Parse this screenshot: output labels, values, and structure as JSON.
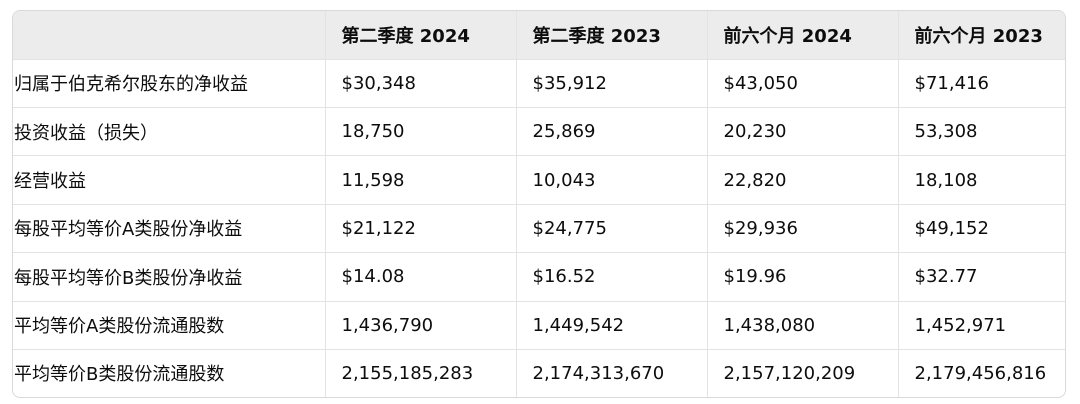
{
  "table": {
    "header": [
      "第二季度 2024",
      "第二季度 2023",
      "前六个月 2024",
      "前六个月 2023"
    ],
    "rows": [
      [
        "归属于伯克希尔股东的净收益",
        "$30,348",
        "$35,912",
        "$43,050",
        "$71,416"
      ],
      [
        "投资收益（损失）",
        "18,750",
        "25,869",
        "20,230",
        "53,308"
      ],
      [
        "经营收益",
        "11,598",
        "10,043",
        "22,820",
        "18,108"
      ],
      [
        "每股平均等价A类股份净收益",
        "$21,122",
        "$24,775",
        "$29,936",
        "$49,152"
      ],
      [
        "每股平均等价B类股份净收益",
        "$14.08",
        "$16.52",
        "$19.96",
        "$32.77"
      ],
      [
        "平均等价A类股份流通股数",
        "1,436,790",
        "1,449,542",
        "1,438,080",
        "1,452,971"
      ],
      [
        "平均等价B类股份流通股数",
        "2,155,185,283",
        "2,174,313,670",
        "2,157,120,209",
        "2,179,456,816"
      ]
    ]
  }
}
